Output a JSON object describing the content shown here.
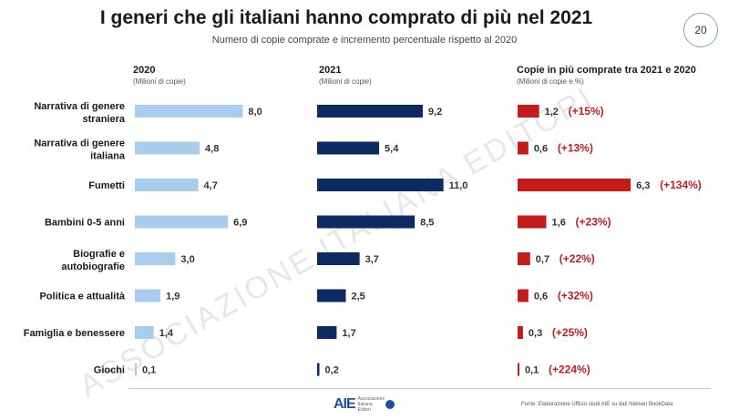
{
  "title": "I generi che gli italiani hanno comprato di più nel 2021",
  "subtitle": "Numero di copie comprate e incremento percentuale rispetto al 2020",
  "page_number": "20",
  "watermark": "ASSOCIAZIONE ITALIANA EDITORI",
  "footer": {
    "logo_text": "AIE",
    "logo_subtext": "Associazione Italiana Editori",
    "source": "Fonte: Elaborazione Ufficio studi AIE su dati Nielsen BookData"
  },
  "colors": {
    "bars_2020": "#a9cdec",
    "bars_2021": "#0e2a63",
    "bars_diff": "#c41b1b",
    "pct_text": "#c0201f"
  },
  "chart_data": [
    {
      "type": "bar",
      "orientation": "horizontal",
      "title": "2020",
      "subtitle": "(Milioni di copie)",
      "categories": [
        "Narrativa di genere straniera",
        "Narrativa di genere italiana",
        "Fumetti",
        "Bambini 0-5 anni",
        "Biografie e autobiografie",
        "Politica e attualità",
        "Famiglia e benessere",
        "Giochi"
      ],
      "values": [
        8.0,
        4.8,
        4.7,
        6.9,
        3.0,
        1.9,
        1.4,
        0.1
      ],
      "value_labels": [
        "8,0",
        "4,8",
        "4,7",
        "6,9",
        "3,0",
        "1,9",
        "1,4",
        "0,1"
      ]
    },
    {
      "type": "bar",
      "orientation": "horizontal",
      "title": "2021",
      "subtitle": "(Milioni di copie)",
      "categories": [
        "Narrativa di genere straniera",
        "Narrativa di genere italiana",
        "Fumetti",
        "Bambini 0-5 anni",
        "Biografie e autobiografie",
        "Politica e attualità",
        "Famiglia e benessere",
        "Giochi"
      ],
      "values": [
        9.2,
        5.4,
        11.0,
        8.5,
        3.7,
        2.5,
        1.7,
        0.2
      ],
      "value_labels": [
        "9,2",
        "5,4",
        "11,0",
        "8,5",
        "3,7",
        "2,5",
        "1,7",
        "0,2"
      ]
    },
    {
      "type": "bar",
      "orientation": "horizontal",
      "title": "Copie in più comprate tra 2021 e 2020",
      "subtitle": "(Milioni di copie e %)",
      "categories": [
        "Narrativa di genere straniera",
        "Narrativa di genere italiana",
        "Fumetti",
        "Bambini 0-5 anni",
        "Biografie e autobiografie",
        "Politica e attualità",
        "Famiglia e benessere",
        "Giochi"
      ],
      "values": [
        1.2,
        0.6,
        6.3,
        1.6,
        0.7,
        0.6,
        0.3,
        0.1
      ],
      "value_labels": [
        "1,2",
        "0,6",
        "6,3",
        "1,6",
        "0,7",
        "0,6",
        "0,3",
        "0,1"
      ],
      "percent_labels": [
        "(+15%)",
        "(+13%)",
        "(+134%)",
        "(+23%)",
        "(+22%)",
        "(+32%)",
        "(+25%)",
        "(+224%)"
      ]
    }
  ]
}
